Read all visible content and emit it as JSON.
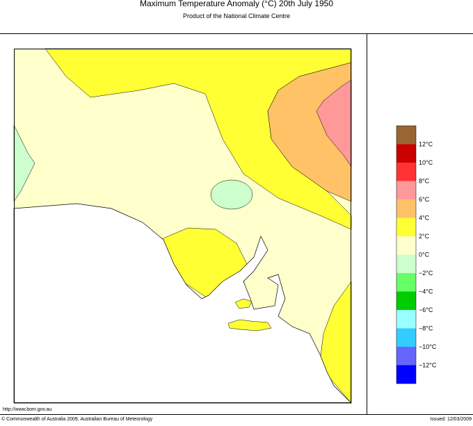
{
  "header": {
    "title": "Maximum Temperature Anomaly (°C)  20th July 1950",
    "subtitle": "Product of the National Climate Centre"
  },
  "legend": {
    "colors": [
      "#996633",
      "#cc0000",
      "#ff3333",
      "#ff9999",
      "#ffc266",
      "#ffff33",
      "#ffffcc",
      "#ccffcc",
      "#66ff66",
      "#00cc00",
      "#99ffff",
      "#33ccff",
      "#6666ff",
      "#0000ff"
    ],
    "labels": [
      "12°C",
      "10°C",
      "8°C",
      "6°C",
      "4°C",
      "2°C",
      "0°C",
      "−2°C",
      "−4°C",
      "−6°C",
      "−8°C",
      "−10°C",
      "−12°C"
    ]
  },
  "footer": {
    "url": "http://www.bom.gov.au",
    "copyright": "© Commonwealth of Australia 2009, Australian Bureau of Meteorology",
    "issued": "Issued: 12/03/2009"
  }
}
